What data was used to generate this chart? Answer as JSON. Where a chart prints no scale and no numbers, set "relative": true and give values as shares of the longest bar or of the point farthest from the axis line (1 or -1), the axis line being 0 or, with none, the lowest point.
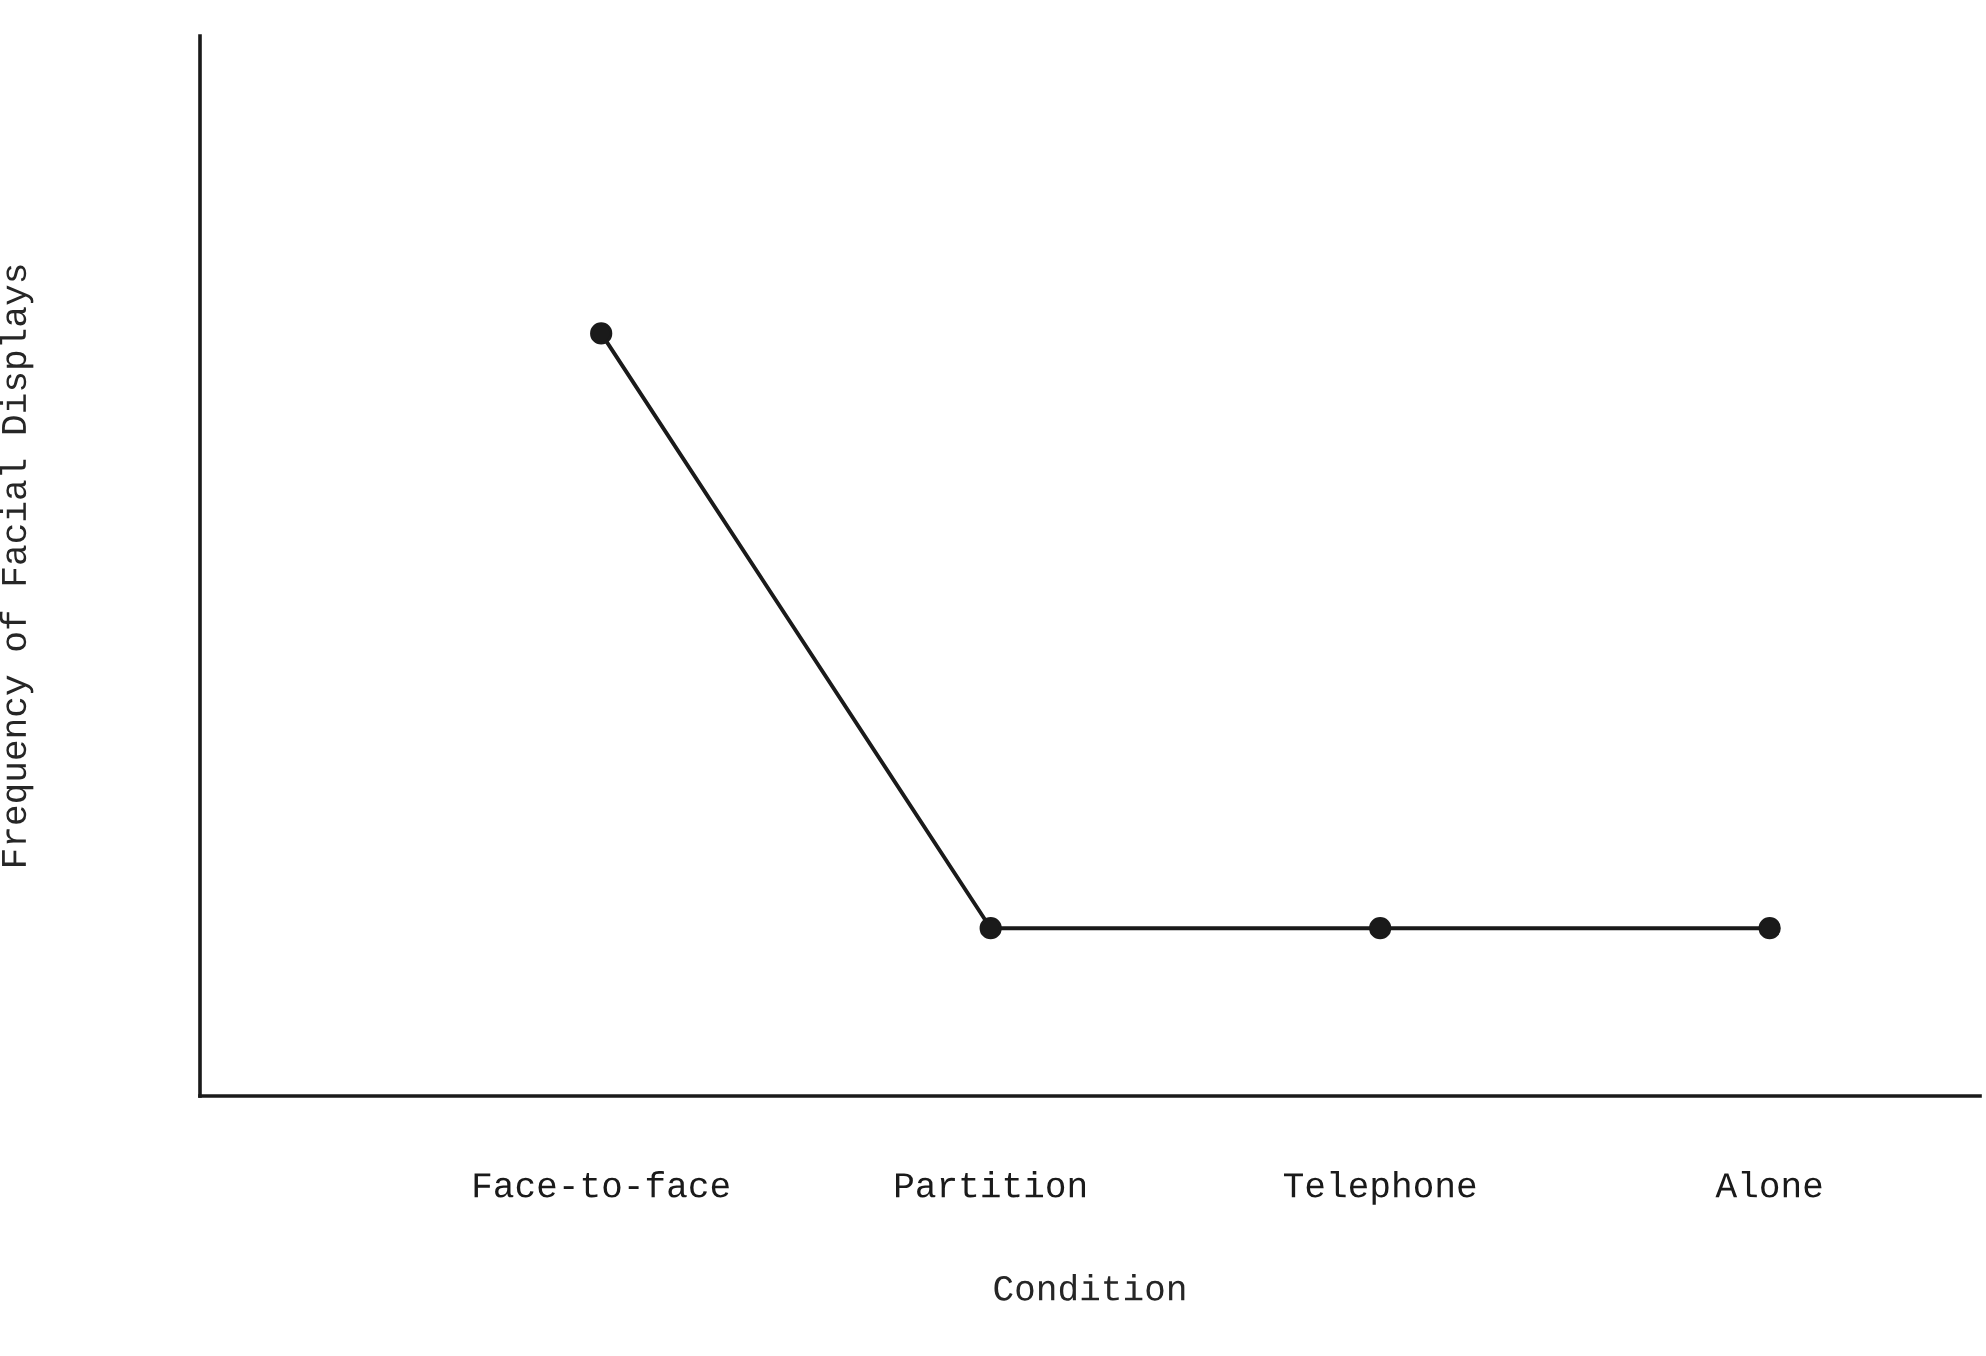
{
  "chart_data": {
    "type": "line",
    "relative": true,
    "xlabel": "Condition",
    "ylabel": "Frequency of Facial Displays",
    "categories": [
      "Face-to-face",
      "Partition",
      "Telephone",
      "Alone"
    ],
    "series": [
      {
        "color": "#1a1a1a",
        "values": [
          1,
          0.22,
          0.22,
          0.22
        ]
      }
    ],
    "marker": "circle",
    "line_style": "solid",
    "grid": false,
    "legend": false
  }
}
